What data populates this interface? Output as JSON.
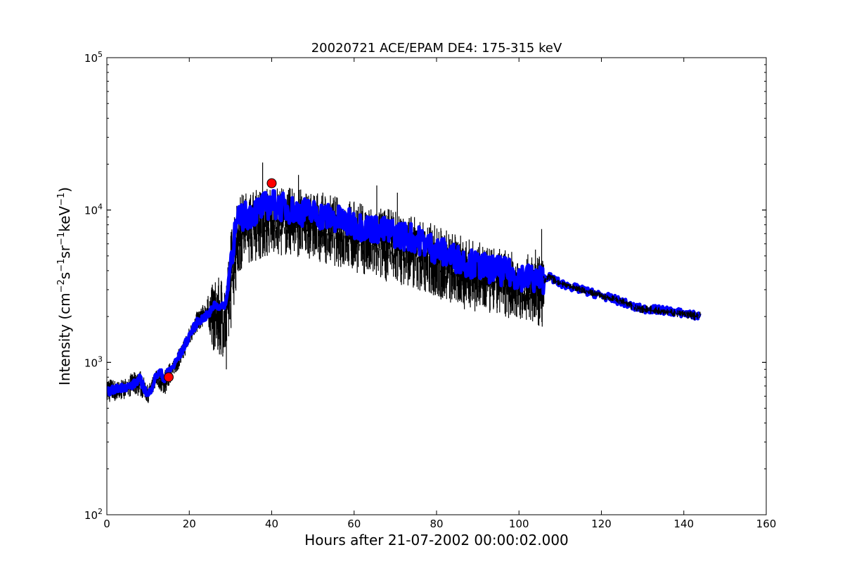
{
  "chart_data": {
    "type": "line",
    "title": "20020721 ACE/EPAM DE4: 175-315 keV",
    "xlabel": "Hours after 21-07-2002 00:00:02.000",
    "ylabel_parts": [
      "Intensity (cm",
      "−2",
      "s",
      "−1",
      "sr",
      "−1",
      "keV",
      "−1",
      ")"
    ],
    "xlim": [
      0,
      160
    ],
    "ylim": [
      100,
      100000
    ],
    "yscale": "log",
    "grid": false,
    "x_ticks": [
      0,
      20,
      40,
      60,
      80,
      100,
      120,
      140,
      160
    ],
    "x_tick_labels": [
      "0",
      "20",
      "40",
      "60",
      "80",
      "100",
      "120",
      "140",
      "160"
    ],
    "y_ticks": [
      {
        "value": 100,
        "base": "10",
        "exp": "2"
      },
      {
        "value": 1000,
        "base": "10",
        "exp": "3"
      },
      {
        "value": 10000,
        "base": "10",
        "exp": "4"
      },
      {
        "value": 100000,
        "base": "10",
        "exp": "5"
      }
    ],
    "series": [
      {
        "style": "black-noisy-envelope",
        "color": "#000000",
        "x": [
          0,
          3,
          6,
          8,
          10,
          12,
          14,
          16,
          18,
          20,
          22,
          24,
          26,
          28,
          29,
          30,
          31,
          32,
          33,
          35,
          38,
          40,
          45,
          50,
          55,
          60,
          65,
          70,
          75,
          80,
          85,
          90,
          95,
          100,
          106
        ],
        "low": [
          540,
          560,
          600,
          600,
          540,
          700,
          600,
          800,
          950,
          1300,
          1600,
          1800,
          1150,
          1100,
          1000,
          1600,
          2600,
          3600,
          4300,
          4500,
          4800,
          5000,
          5000,
          4700,
          4300,
          3900,
          3500,
          3300,
          3000,
          2600,
          2300,
          2100,
          2000,
          1900,
          1700
        ],
        "high": [
          800,
          750,
          850,
          900,
          700,
          900,
          900,
          1050,
          1300,
          1700,
          2200,
          2500,
          3500,
          3700,
          3500,
          7000,
          11000,
          12500,
          13000,
          13500,
          14000,
          14500,
          14000,
          13500,
          12500,
          11500,
          10500,
          10000,
          9000,
          8000,
          7000,
          6200,
          5600,
          5200,
          5000
        ],
        "spikes": [
          [
            29,
            900
          ],
          [
            37.8,
            20500
          ],
          [
            46.5,
            17000
          ],
          [
            65.5,
            14500
          ],
          [
            70.5,
            13000
          ],
          [
            105.5,
            7500
          ],
          [
            104,
            5500
          ]
        ]
      },
      {
        "style": "blue-thick-mean",
        "color": "#0000ff",
        "x": [
          0,
          3,
          6,
          8,
          10,
          12,
          13,
          14,
          15,
          16,
          18,
          20,
          22,
          24,
          25,
          26,
          28,
          29,
          30,
          31,
          32,
          33,
          35,
          38,
          40,
          45,
          50,
          55,
          60,
          65,
          70,
          75,
          80,
          85,
          90,
          95,
          100,
          104,
          106,
          107,
          110,
          115,
          120,
          125,
          128,
          130,
          135,
          140,
          144
        ],
        "y": [
          640,
          680,
          700,
          780,
          600,
          820,
          860,
          780,
          880,
          930,
          1150,
          1500,
          1850,
          2000,
          2100,
          2400,
          2300,
          2500,
          4500,
          7000,
          8500,
          9000,
          9500,
          10500,
          11000,
          10000,
          9500,
          8800,
          8000,
          7500,
          7000,
          6500,
          5500,
          4800,
          4300,
          4000,
          3700,
          3500,
          3500,
          3700,
          3300,
          3000,
          2750,
          2500,
          2300,
          2250,
          2200,
          2100,
          2000
        ]
      },
      {
        "style": "black-thin-tail",
        "color": "#000000",
        "x": [
          106,
          107,
          110,
          115,
          120,
          125,
          128,
          130,
          135,
          140,
          144
        ],
        "low": [
          3200,
          3400,
          3150,
          2850,
          2600,
          2380,
          2150,
          2100,
          2050,
          1950,
          1850
        ],
        "high": [
          3900,
          3900,
          3500,
          3150,
          2900,
          2650,
          2450,
          2400,
          2300,
          2200,
          2150
        ]
      }
    ],
    "markers": [
      {
        "x": 15,
        "y": 800,
        "color": "#ff0000"
      },
      {
        "x": 40,
        "y": 15000,
        "color": "#ff0000"
      }
    ]
  }
}
